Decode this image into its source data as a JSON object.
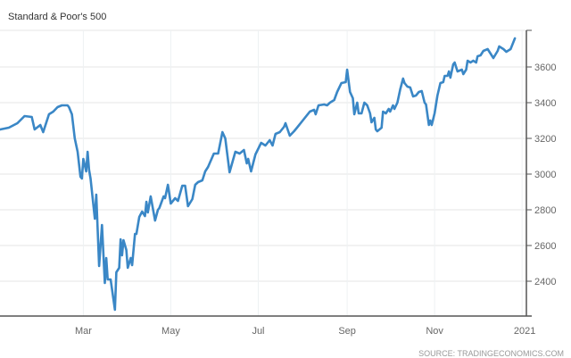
{
  "chart_data": {
    "type": "line",
    "title": "Standard & Poor's 500",
    "source": "SOURCE: TRADINGECONOMICS.COM",
    "xlabel": "",
    "ylabel": "",
    "ylim": [
      2205,
      3805
    ],
    "xlim": [
      "2020-01-01",
      "2021-01-03"
    ],
    "y_ticks": [
      2400,
      2600,
      2800,
      3000,
      3200,
      3400,
      3600
    ],
    "x_ticks": [
      {
        "date": "2020-03-01",
        "label": "Mar"
      },
      {
        "date": "2020-05-01",
        "label": "May"
      },
      {
        "date": "2020-07-01",
        "label": "Jul"
      },
      {
        "date": "2020-09-01",
        "label": "Sep"
      },
      {
        "date": "2020-11-01",
        "label": "Nov"
      },
      {
        "date": "2021-01-01",
        "label": "2021"
      }
    ],
    "grid": true,
    "y_axis_side": "right",
    "line_color": "#3a87c6",
    "series": [
      {
        "x": [
          "2020-01-03",
          "2020-01-09",
          "2020-01-15",
          "2020-01-20",
          "2020-01-25",
          "2020-01-27",
          "2020-01-31",
          "2020-02-02",
          "2020-02-06",
          "2020-02-09",
          "2020-02-12",
          "2020-02-15",
          "2020-02-19",
          "2020-02-20",
          "2020-02-22",
          "2020-02-24",
          "2020-02-26",
          "2020-02-28",
          "2020-02-29",
          "2020-03-01",
          "2020-03-03",
          "2020-03-04",
          "2020-03-05",
          "2020-03-06",
          "2020-03-09",
          "2020-03-10",
          "2020-03-12",
          "2020-03-14",
          "2020-03-16",
          "2020-03-17",
          "2020-03-18",
          "2020-03-20",
          "2020-03-23",
          "2020-03-24",
          "2020-03-26",
          "2020-03-27",
          "2020-03-28",
          "2020-03-29",
          "2020-03-31",
          "2020-04-01",
          "2020-04-03",
          "2020-04-04",
          "2020-04-06",
          "2020-04-07",
          "2020-04-09",
          "2020-04-11",
          "2020-04-13",
          "2020-04-14",
          "2020-04-15",
          "2020-04-17",
          "2020-04-20",
          "2020-04-22",
          "2020-04-23",
          "2020-04-26",
          "2020-04-27",
          "2020-04-29",
          "2020-05-01",
          "2020-05-04",
          "2020-05-06",
          "2020-05-09",
          "2020-05-11",
          "2020-05-13",
          "2020-05-16",
          "2020-05-18",
          "2020-05-20",
          "2020-05-23",
          "2020-05-25",
          "2020-05-27",
          "2020-05-31",
          "2020-06-03",
          "2020-06-06",
          "2020-06-08",
          "2020-06-11",
          "2020-06-15",
          "2020-06-18",
          "2020-06-21",
          "2020-06-23",
          "2020-06-24",
          "2020-06-26",
          "2020-06-29",
          "2020-07-03",
          "2020-07-06",
          "2020-07-09",
          "2020-07-11",
          "2020-07-13",
          "2020-07-16",
          "2020-07-19",
          "2020-07-20",
          "2020-07-23",
          "2020-07-26",
          "2020-07-28",
          "2020-08-01",
          "2020-08-06",
          "2020-08-09",
          "2020-08-10",
          "2020-08-12",
          "2020-08-16",
          "2020-08-18",
          "2020-08-20",
          "2020-08-23",
          "2020-08-25",
          "2020-08-28",
          "2020-08-31",
          "2020-09-01",
          "2020-09-03",
          "2020-09-05",
          "2020-09-06",
          "2020-09-08",
          "2020-09-09",
          "2020-09-11",
          "2020-09-13",
          "2020-09-15",
          "2020-09-17",
          "2020-09-18",
          "2020-09-20",
          "2020-09-21",
          "2020-09-22",
          "2020-09-25",
          "2020-09-26",
          "2020-09-28",
          "2020-09-30",
          "2020-10-01",
          "2020-10-03",
          "2020-10-04",
          "2020-10-06",
          "2020-10-08",
          "2020-10-10",
          "2020-10-11",
          "2020-10-13",
          "2020-10-15",
          "2020-10-17",
          "2020-10-19",
          "2020-10-21",
          "2020-10-23",
          "2020-10-25",
          "2020-10-26",
          "2020-10-28",
          "2020-10-29",
          "2020-10-30",
          "2020-11-01",
          "2020-11-03",
          "2020-11-05",
          "2020-11-07",
          "2020-11-08",
          "2020-11-10",
          "2020-11-11",
          "2020-11-12",
          "2020-11-14",
          "2020-11-15",
          "2020-11-17",
          "2020-11-20",
          "2020-11-21",
          "2020-11-23",
          "2020-11-24",
          "2020-11-26",
          "2020-11-28",
          "2020-11-30",
          "2020-12-01",
          "2020-12-03",
          "2020-12-05",
          "2020-12-08",
          "2020-12-10",
          "2020-12-12",
          "2020-12-15",
          "2020-12-16",
          "2020-12-19",
          "2020-12-21",
          "2020-12-24",
          "2020-12-26",
          "2020-12-27"
        ],
        "values": [
          3250,
          3260,
          3285,
          3325,
          3320,
          3250,
          3275,
          3235,
          3335,
          3350,
          3375,
          3385,
          3385,
          3375,
          3335,
          3200,
          3125,
          2985,
          2975,
          3085,
          3015,
          3125,
          3025,
          2975,
          2750,
          2885,
          2485,
          2715,
          2390,
          2530,
          2410,
          2410,
          2240,
          2450,
          2475,
          2635,
          2545,
          2630,
          2575,
          2475,
          2530,
          2490,
          2665,
          2665,
          2760,
          2790,
          2765,
          2845,
          2785,
          2875,
          2740,
          2800,
          2810,
          2875,
          2865,
          2940,
          2835,
          2865,
          2850,
          2935,
          2935,
          2820,
          2860,
          2940,
          2955,
          2965,
          3015,
          3040,
          3115,
          3115,
          3235,
          3200,
          3010,
          3125,
          3115,
          3135,
          3060,
          3085,
          3015,
          3110,
          3175,
          3160,
          3190,
          3160,
          3225,
          3235,
          3265,
          3285,
          3215,
          3240,
          3260,
          3300,
          3350,
          3360,
          3335,
          3385,
          3390,
          3385,
          3400,
          3415,
          3460,
          3510,
          3515,
          3585,
          3460,
          3425,
          3335,
          3400,
          3340,
          3340,
          3400,
          3385,
          3340,
          3290,
          3315,
          3250,
          3240,
          3260,
          3350,
          3340,
          3365,
          3350,
          3385,
          3365,
          3400,
          3475,
          3535,
          3510,
          3490,
          3485,
          3435,
          3440,
          3460,
          3465,
          3400,
          3390,
          3275,
          3300,
          3275,
          3340,
          3440,
          3510,
          3515,
          3550,
          3550,
          3575,
          3540,
          3615,
          3625,
          3575,
          3585,
          3560,
          3585,
          3635,
          3625,
          3635,
          3625,
          3660,
          3665,
          3690,
          3700,
          3675,
          3650,
          3690,
          3715,
          3700,
          3685,
          3700,
          3740,
          3760
        ]
      }
    ]
  }
}
